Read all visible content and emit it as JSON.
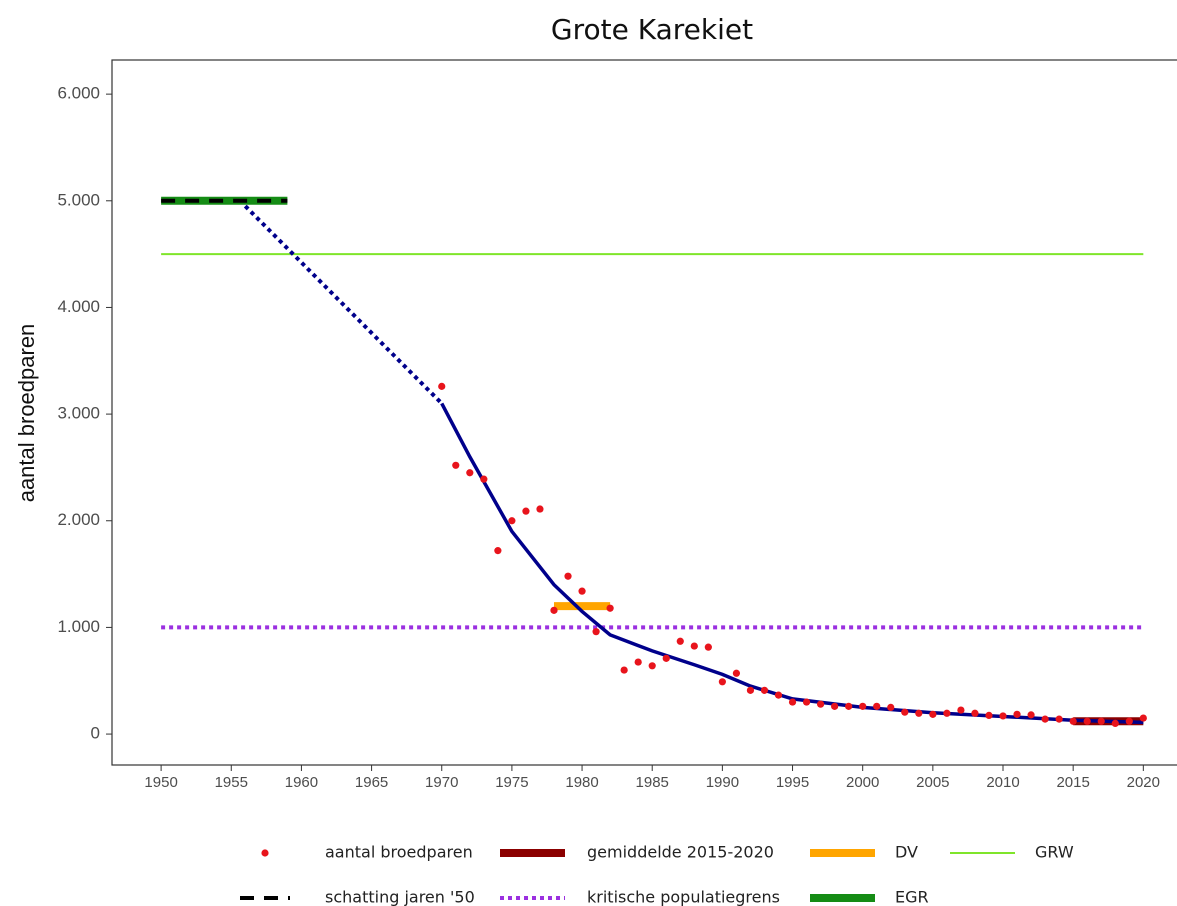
{
  "chart_data": {
    "type": "scatter",
    "title": "Grote Karekiet",
    "y_label": "aantal broedparen",
    "xlim": [
      1946.5,
      2022.4
    ],
    "ylim": [
      -290,
      6320
    ],
    "xticks": [
      1950,
      1955,
      1960,
      1965,
      1970,
      1975,
      1980,
      1985,
      1990,
      1995,
      2000,
      2005,
      2010,
      2015,
      2020
    ],
    "yticks": [
      0,
      {
        "value": 1000,
        "label": "1.000"
      },
      {
        "value": 2000,
        "label": "2.000"
      },
      {
        "value": 3000,
        "label": "3.000"
      },
      {
        "value": 4000,
        "label": "4.000"
      },
      {
        "value": 5000,
        "label": "5.000"
      },
      {
        "value": 6000,
        "label": "6.000"
      }
    ],
    "series": [
      {
        "name": "aantal broedparen",
        "color": "#e8141c",
        "style": "points",
        "x": [
          1970,
          1971,
          1972,
          1973,
          1974,
          1975,
          1976,
          1977,
          1978,
          1979,
          1980,
          1981,
          1982,
          1983,
          1984,
          1985,
          1986,
          1987,
          1988,
          1989,
          1990,
          1991,
          1992,
          1993,
          1994,
          1995,
          1996,
          1997,
          1998,
          1999,
          2000,
          2001,
          2002,
          2003,
          2004,
          2005,
          2006,
          2007,
          2008,
          2009,
          2010,
          2011,
          2012,
          2013,
          2014,
          2015,
          2016,
          2017,
          2018,
          2019,
          2020
        ],
        "values": [
          3260,
          2520,
          2450,
          2390,
          1720,
          2000,
          2090,
          2110,
          1160,
          1480,
          1340,
          960,
          1180,
          600,
          675,
          640,
          710,
          870,
          825,
          815,
          490,
          570,
          410,
          410,
          365,
          300,
          300,
          280,
          260,
          260,
          260,
          260,
          250,
          205,
          195,
          185,
          195,
          225,
          195,
          175,
          170,
          185,
          180,
          140,
          140,
          120,
          120,
          120,
          100,
          120,
          150
        ]
      },
      {
        "name": "gemiddelde 2015-2020",
        "color": "#8b0000",
        "style": "thick",
        "x": [
          2015,
          2020
        ],
        "values": [
          120,
          120
        ]
      },
      {
        "name": "DV",
        "color": "#ffa500",
        "style": "thick",
        "x": [
          1978,
          1982
        ],
        "values": [
          1200,
          1200
        ]
      },
      {
        "name": "GRW",
        "color": "#7fe52a",
        "style": "thin",
        "x": [
          1950,
          2020
        ],
        "values": [
          4500,
          4500
        ]
      },
      {
        "name": "schatting jaren '50",
        "color": "#000000",
        "style": "dashed",
        "x": [
          1950,
          1959
        ],
        "values": [
          5000,
          5000
        ]
      },
      {
        "name": "kritische populatiegrens",
        "color": "#9b30e0",
        "style": "dotted",
        "x": [
          1950,
          2020
        ],
        "values": [
          1000,
          1000
        ]
      },
      {
        "name": "EGR",
        "color": "#158c15",
        "style": "thick",
        "x": [
          1950,
          1959
        ],
        "values": [
          5000,
          5000
        ]
      }
    ],
    "lines": [
      {
        "color": "#00008b",
        "style": "dotted",
        "x": [
          1956,
          1970
        ],
        "values": [
          4950,
          3100
        ]
      },
      {
        "color": "#00008b",
        "style": "solid",
        "x": [
          1970,
          1972,
          1975,
          1978,
          1980,
          1982,
          1985,
          1988,
          1990,
          1992,
          1995,
          2000,
          2005,
          2010,
          2015,
          2020
        ],
        "values": [
          3100,
          2600,
          1900,
          1400,
          1150,
          930,
          780,
          650,
          560,
          450,
          330,
          250,
          200,
          165,
          130,
          110
        ]
      }
    ]
  }
}
